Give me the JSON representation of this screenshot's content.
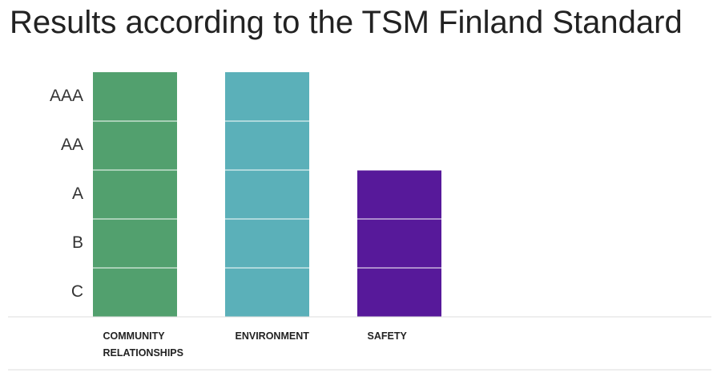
{
  "chart_data": {
    "type": "bar",
    "title": "Results according to the TSM Finland Standard",
    "categories": [
      "COMMUNITY RELATIONSHIPS",
      "ENVIRONMENT",
      "SAFETY"
    ],
    "series": [
      {
        "values": [
          5,
          5,
          3
        ],
        "colors": [
          "#52a06e",
          "#5bb0b9",
          "#57199a"
        ]
      }
    ],
    "ylim": [
      0,
      5
    ],
    "yticks": [
      {
        "value": 1,
        "label": "C"
      },
      {
        "value": 2,
        "label": "B"
      },
      {
        "value": 3,
        "label": "A"
      },
      {
        "value": 4,
        "label": "AA"
      },
      {
        "value": 5,
        "label": "AAA"
      }
    ],
    "grid": true
  }
}
